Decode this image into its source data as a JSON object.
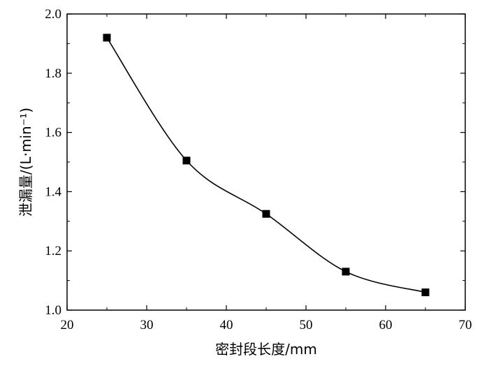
{
  "chart_data": {
    "type": "line",
    "title": "",
    "xlabel": "密封段长度/mm",
    "ylabel": "泄漏量/(L·min⁻¹)",
    "xlim": [
      20,
      70
    ],
    "ylim": [
      1.0,
      2.0
    ],
    "xticks": [
      20,
      30,
      40,
      50,
      60,
      70
    ],
    "yticks": [
      1.0,
      1.2,
      1.4,
      1.6,
      1.8,
      2.0
    ],
    "ytick_labels": [
      "1.0",
      "1.2",
      "1.4",
      "1.6",
      "1.8",
      "2.0"
    ],
    "grid": false,
    "marker": "square",
    "line_style": "smooth",
    "color": "#000000",
    "series": [
      {
        "x": [
          25,
          35,
          45,
          55,
          65
        ],
        "y": [
          1.92,
          1.505,
          1.325,
          1.13,
          1.06
        ]
      }
    ]
  }
}
